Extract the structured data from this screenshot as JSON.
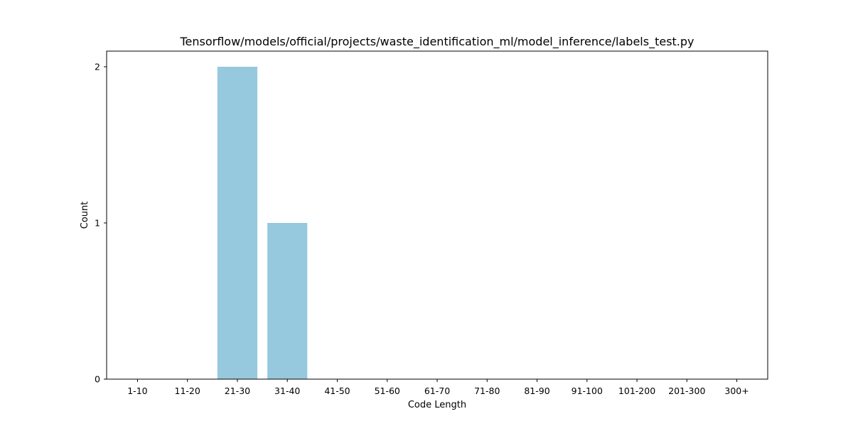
{
  "chart_data": {
    "type": "bar",
    "title": "Tensorflow/models/official/projects/waste_identification_ml/model_inference/labels_test.py",
    "xlabel": "Code Length",
    "ylabel": "Count",
    "categories": [
      "1-10",
      "11-20",
      "21-30",
      "31-40",
      "41-50",
      "51-60",
      "61-70",
      "71-80",
      "81-90",
      "91-100",
      "101-200",
      "201-300",
      "300+"
    ],
    "values": [
      0,
      0,
      2,
      1,
      0,
      0,
      0,
      0,
      0,
      0,
      0,
      0,
      0
    ],
    "ylim": [
      0,
      2.1
    ],
    "yticks": [
      0,
      1,
      2
    ],
    "grid": false,
    "colors": {
      "bar": "#96c9de",
      "axis": "#000000",
      "background": "#ffffff"
    }
  }
}
